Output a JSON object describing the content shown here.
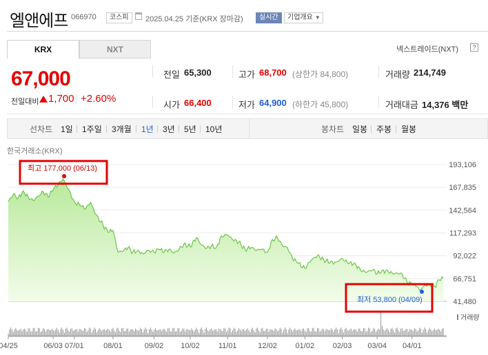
{
  "header": {
    "title": "엘앤에프",
    "code": "066970",
    "market_tag": "코스피",
    "date_text": "2025.04.25 기준(KRX 장마감)",
    "realtime_tag": "실시간",
    "company_overview": "기업개요"
  },
  "tabs": [
    {
      "label": "KRX",
      "active": true
    },
    {
      "label": "NXT",
      "active": false
    }
  ],
  "nxt_link": "넥스트레이드(NXT)",
  "help_icon_text": "?",
  "price": {
    "current": "67,000",
    "diff_label": "전일대비",
    "diff": "1,700",
    "diff_pct": "+2.60%",
    "direction": "up"
  },
  "stats": {
    "prev_close": {
      "label": "전일",
      "value": "65,300"
    },
    "high": {
      "label": "고가",
      "value": "68,700",
      "sub": "(상한가 84,800)"
    },
    "volume": {
      "label": "거래량",
      "value": "214,749"
    },
    "open": {
      "label": "시가",
      "value": "66,400"
    },
    "low": {
      "label": "저가",
      "value": "64,900",
      "sub": "(하한가 45,800)"
    },
    "trade_value": {
      "label": "거래대금",
      "value": "14,376 백만"
    }
  },
  "period_bar": {
    "line_label": "선차트",
    "line_periods": [
      "1일",
      "1주일",
      "3개월",
      "1년",
      "3년",
      "5년",
      "10년"
    ],
    "active_period": "1년",
    "candle_label": "봉차트",
    "candle_periods": [
      "일봉",
      "주봉",
      "월봉"
    ]
  },
  "exchange_label": "한국거래소(KRX)",
  "colors": {
    "up": "#e50000",
    "down": "#1e5ed9",
    "active": "#1e5ed9",
    "line": "#6dc54a",
    "area_top": "#b9e99c",
    "area_bottom": "#f2fcea",
    "annotation_box": "#e50000"
  },
  "chart_data": {
    "type": "area",
    "y_ticks": [
      "193,106",
      "167,835",
      "142,564",
      "117,293",
      "92,022",
      "66,751",
      "41,480"
    ],
    "ylim": [
      41480,
      193106
    ],
    "x_ticks": [
      "04/25",
      "06/03",
      "07/01",
      "08/01",
      "09/02",
      "10/02",
      "11/01",
      "12/02",
      "01/02",
      "02/03",
      "03/04",
      "04/01"
    ],
    "x_tick_index": [
      0,
      36,
      53,
      84,
      117,
      146,
      176,
      208,
      238,
      268,
      296,
      324
    ],
    "n_points": 350,
    "volume_label": "거래량",
    "high_annotation": {
      "label": "최고",
      "value": "177,000",
      "date": "(06/13)",
      "index": 44,
      "price": 177000
    },
    "low_annotation": {
      "label": "최저",
      "value": "53,800",
      "date": "(04/09)",
      "index": 330,
      "price": 53800
    },
    "keypoints": [
      [
        0,
        152000
      ],
      [
        4,
        160000
      ],
      [
        8,
        156000
      ],
      [
        12,
        164000
      ],
      [
        16,
        157000
      ],
      [
        20,
        153000
      ],
      [
        24,
        158000
      ],
      [
        28,
        163000
      ],
      [
        32,
        157000
      ],
      [
        36,
        165000
      ],
      [
        40,
        171000
      ],
      [
        44,
        177000
      ],
      [
        48,
        166000
      ],
      [
        53,
        152000
      ],
      [
        58,
        147000
      ],
      [
        62,
        144000
      ],
      [
        66,
        151000
      ],
      [
        70,
        138000
      ],
      [
        76,
        126000
      ],
      [
        80,
        118000
      ],
      [
        84,
        120000
      ],
      [
        88,
        96000
      ],
      [
        92,
        97000
      ],
      [
        96,
        101000
      ],
      [
        100,
        96000
      ],
      [
        104,
        98000
      ],
      [
        108,
        94000
      ],
      [
        112,
        98000
      ],
      [
        117,
        96000
      ],
      [
        121,
        99000
      ],
      [
        125,
        96000
      ],
      [
        129,
        99000
      ],
      [
        133,
        95000
      ],
      [
        137,
        99000
      ],
      [
        141,
        105000
      ],
      [
        146,
        102000
      ],
      [
        151,
        112000
      ],
      [
        155,
        104000
      ],
      [
        159,
        100000
      ],
      [
        163,
        103000
      ],
      [
        167,
        101000
      ],
      [
        171,
        114000
      ],
      [
        176,
        115000
      ],
      [
        180,
        110000
      ],
      [
        185,
        107000
      ],
      [
        190,
        99000
      ],
      [
        195,
        101000
      ],
      [
        199,
        98000
      ],
      [
        203,
        99000
      ],
      [
        208,
        96000
      ],
      [
        212,
        110000
      ],
      [
        216,
        112000
      ],
      [
        220,
        103000
      ],
      [
        224,
        101000
      ],
      [
        228,
        89000
      ],
      [
        232,
        84000
      ],
      [
        238,
        78000
      ],
      [
        243,
        87000
      ],
      [
        248,
        92000
      ],
      [
        253,
        88000
      ],
      [
        258,
        84000
      ],
      [
        263,
        85000
      ],
      [
        268,
        89000
      ],
      [
        273,
        83000
      ],
      [
        278,
        84000
      ],
      [
        283,
        75000
      ],
      [
        288,
        74000
      ],
      [
        293,
        77000
      ],
      [
        296,
        72000
      ],
      [
        300,
        76000
      ],
      [
        305,
        74000
      ],
      [
        310,
        72000
      ],
      [
        315,
        73000
      ],
      [
        320,
        63000
      ],
      [
        324,
        60000
      ],
      [
        328,
        58000
      ],
      [
        330,
        53800
      ],
      [
        334,
        59000
      ],
      [
        338,
        60000
      ],
      [
        342,
        58000
      ],
      [
        346,
        65000
      ],
      [
        349,
        67000
      ]
    ]
  }
}
